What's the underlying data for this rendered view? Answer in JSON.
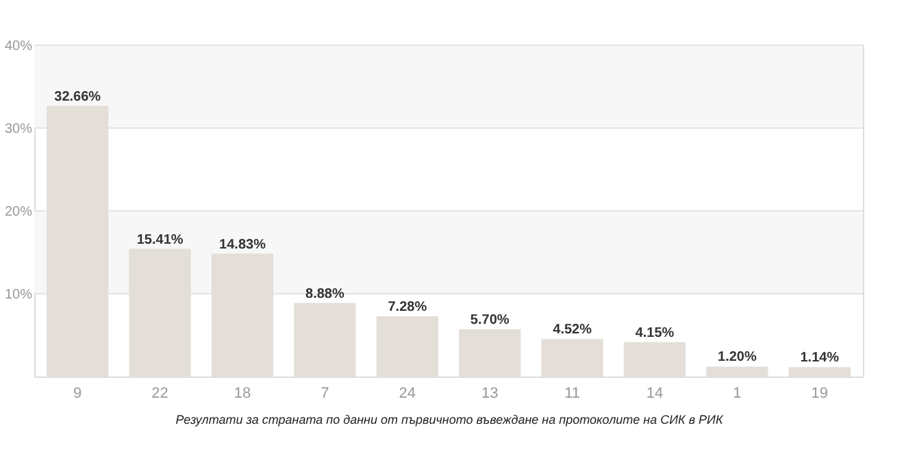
{
  "chart_data": {
    "type": "bar",
    "xlabel": "Резултати за страната по данни от първичното въвеждане на протоколите на СИК в РИК",
    "categories": [
      "9",
      "22",
      "18",
      "7",
      "24",
      "13",
      "11",
      "14",
      "1",
      "19"
    ],
    "values": [
      32.66,
      15.41,
      14.83,
      8.88,
      7.28,
      5.7,
      4.52,
      4.15,
      1.2,
      1.14
    ],
    "value_labels": [
      "32.66%",
      "15.41%",
      "14.83%",
      "8.88%",
      "7.28%",
      "5.70%",
      "4.52%",
      "4.15%",
      "1.20%",
      "1.14%"
    ],
    "color": "#e3dfd8",
    "ylim": [
      0,
      40
    ],
    "yticks": [
      {
        "value": 10,
        "label": "10%"
      },
      {
        "value": 20,
        "label": "20%"
      },
      {
        "value": 30,
        "label": "30%"
      },
      {
        "value": 40,
        "label": "40%"
      }
    ],
    "bands": [
      {
        "axis": "y",
        "from": 10,
        "to": 20,
        "color": "#f7f7f7"
      },
      {
        "axis": "y",
        "from": 30,
        "to": 40,
        "color": "#f7f7f7"
      }
    ],
    "grid": "y"
  }
}
